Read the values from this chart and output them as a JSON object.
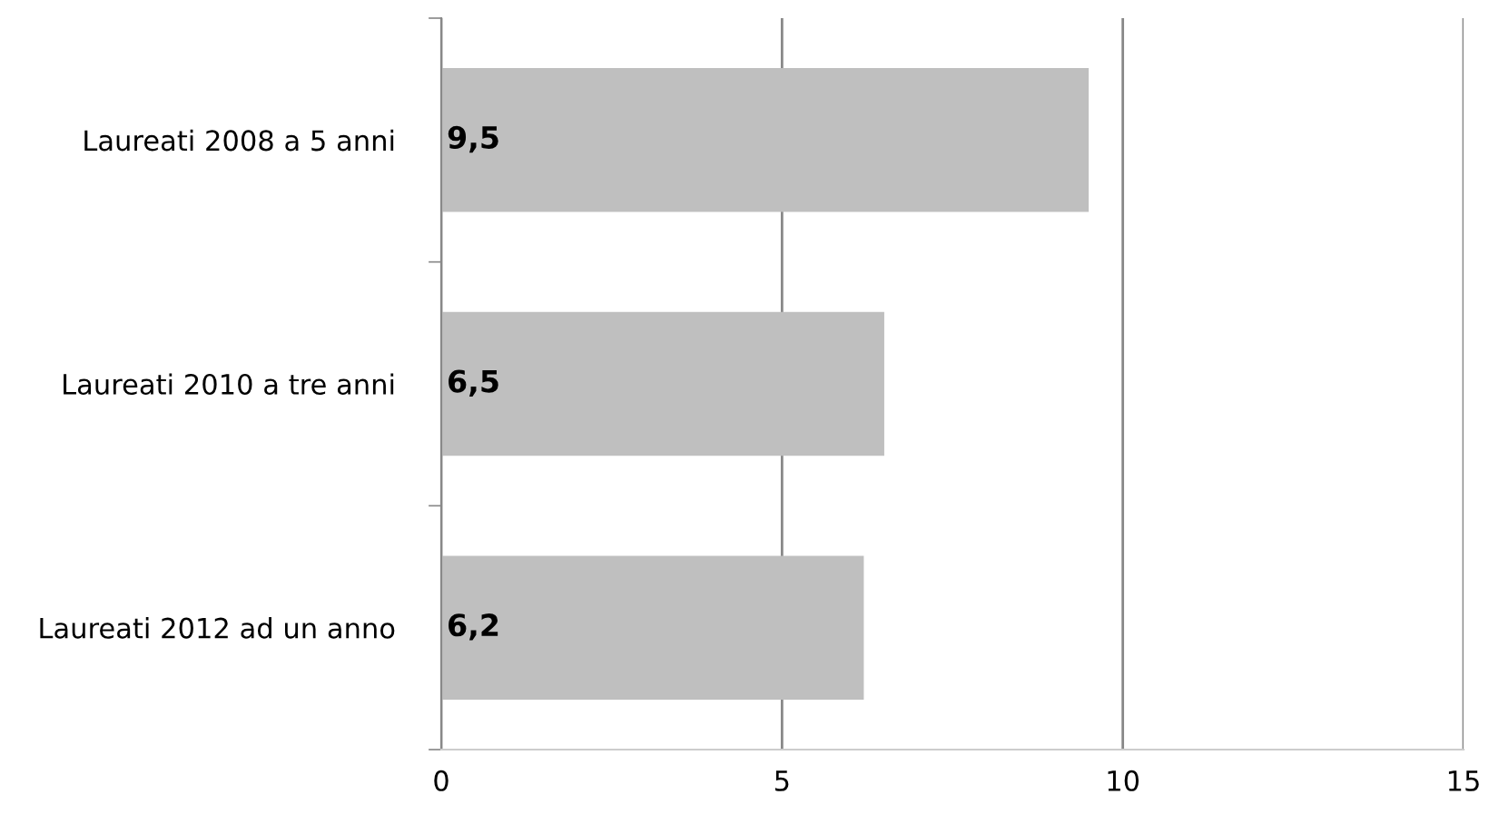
{
  "chart_data": {
    "type": "bar",
    "orientation": "horizontal",
    "categories": [
      "Laureati 2008 a 5 anni",
      "Laureati 2010 a tre anni",
      "Laureati 2012 ad un anno"
    ],
    "values": [
      9.5,
      6.5,
      6.2
    ],
    "color": "#bfbfbf",
    "value_labels": [
      "9,5",
      "6,5",
      "6,2"
    ],
    "xlim": [
      0,
      15
    ],
    "xticks": [
      0,
      5,
      10,
      15
    ],
    "grid": "x"
  }
}
